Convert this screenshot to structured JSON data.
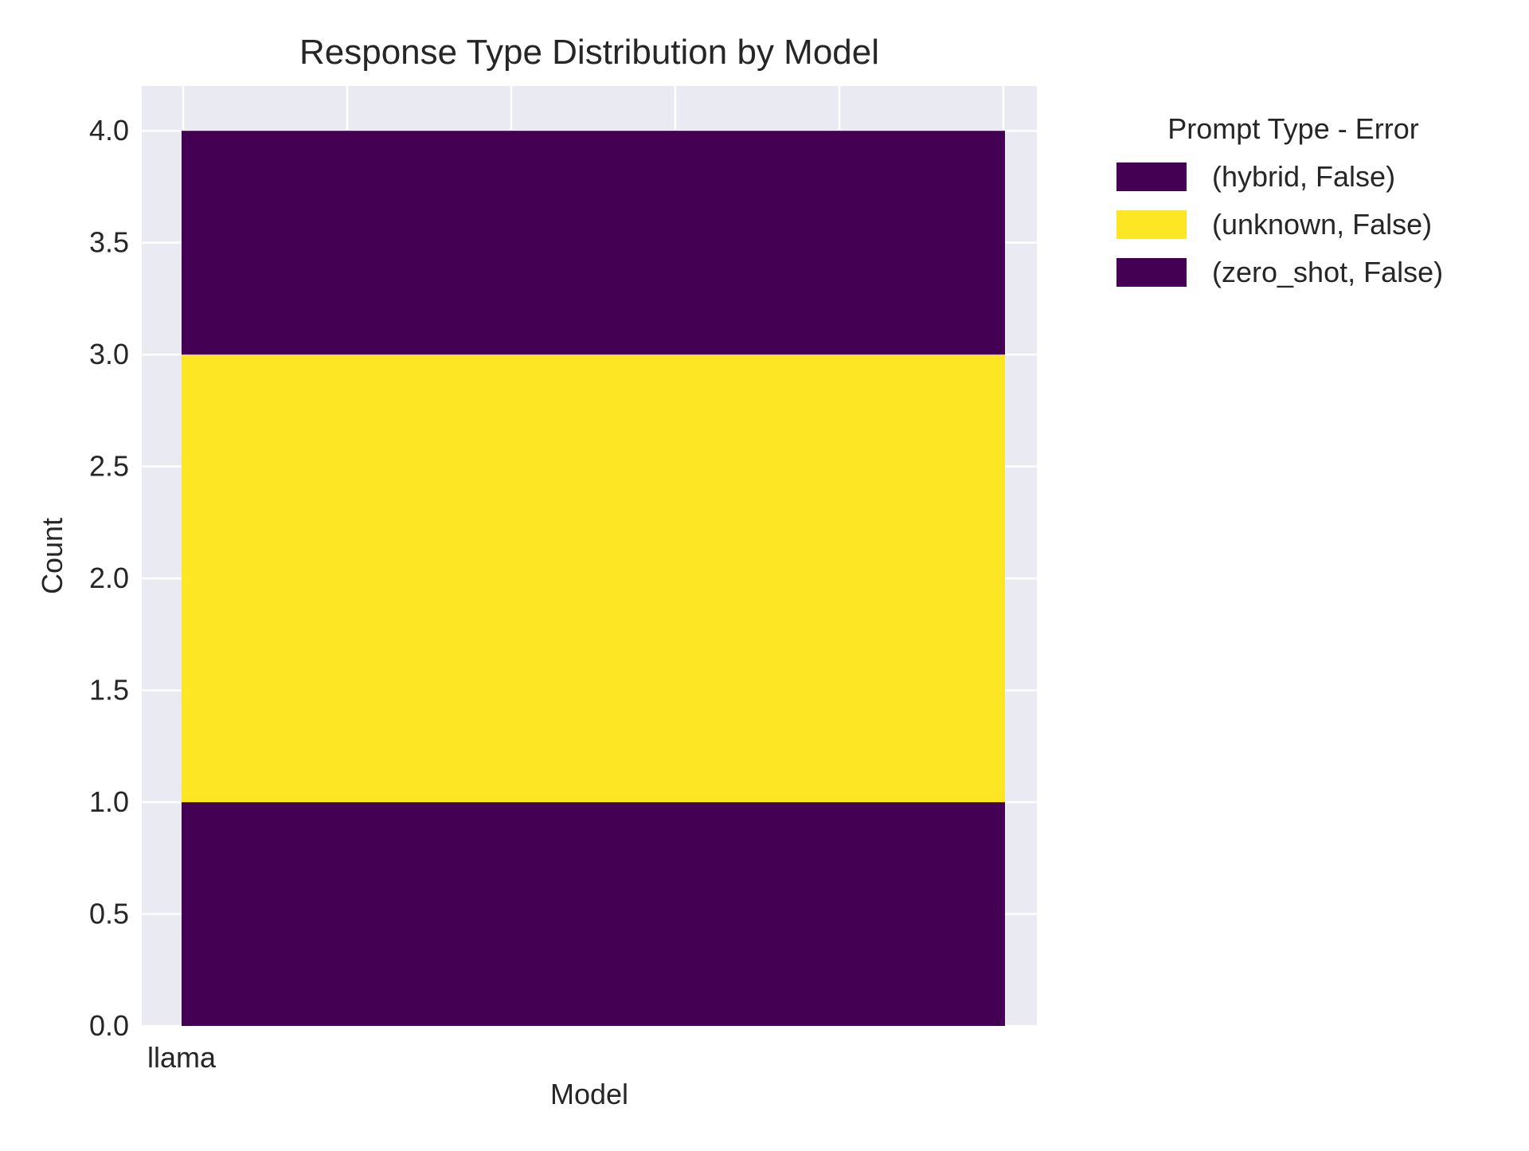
{
  "chart_data": {
    "type": "bar",
    "stacked": true,
    "title": "Response Type Distribution by Model",
    "xlabel": "Model",
    "ylabel": "Count",
    "categories": [
      "llama"
    ],
    "ylim": [
      0,
      4.2
    ],
    "yticks": [
      "0.0",
      "0.5",
      "1.0",
      "1.5",
      "2.0",
      "2.5",
      "3.0",
      "3.5",
      "4.0"
    ],
    "grid": true,
    "legend": {
      "title": "Prompt Type - Error",
      "placement": "outside-top-right"
    },
    "series": [
      {
        "name": "(zero_shot, False)",
        "values": [
          1
        ],
        "color": "#440154"
      },
      {
        "name": "(unknown, False)",
        "values": [
          2
        ],
        "color": "#fde725"
      },
      {
        "name": "(hybrid, False)",
        "values": [
          1
        ],
        "color": "#440154"
      }
    ],
    "legend_order": [
      "(hybrid, False)",
      "(unknown, False)",
      "(zero_shot, False)"
    ],
    "colors": {
      "plot_background": "#eaeaf2",
      "grid": "#ffffff"
    }
  }
}
